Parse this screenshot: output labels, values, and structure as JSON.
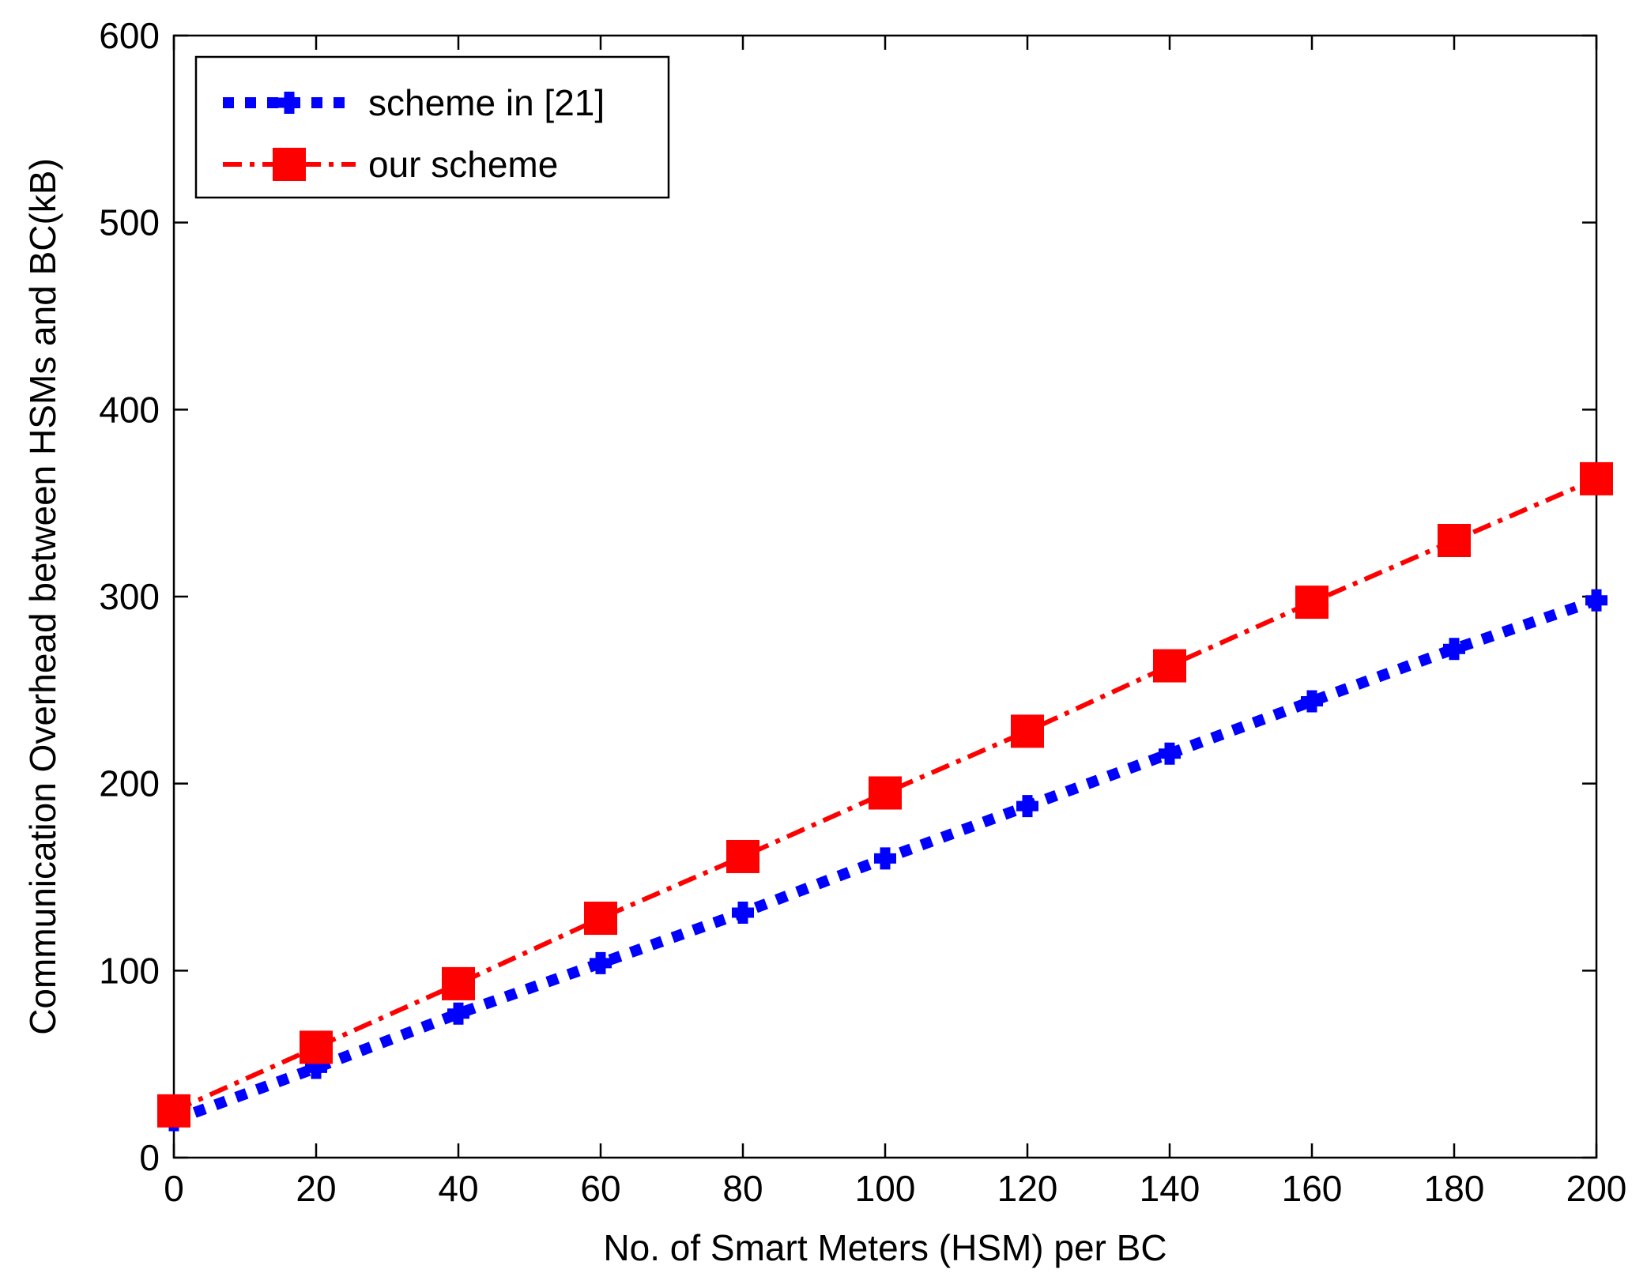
{
  "chart_data": {
    "type": "line",
    "title": "",
    "xlabel": "No. of Smart Meters (HSM) per BC",
    "ylabel": "Communication Overhead between HSMs and BC(kB)",
    "xlim": [
      0,
      200
    ],
    "ylim": [
      0,
      600
    ],
    "xticks": [
      0,
      20,
      40,
      60,
      80,
      100,
      120,
      140,
      160,
      180,
      200
    ],
    "yticks": [
      0,
      100,
      200,
      300,
      400,
      500,
      600
    ],
    "grid": false,
    "legend_position": "top-left",
    "x": [
      0,
      20,
      40,
      60,
      80,
      100,
      120,
      140,
      160,
      180,
      200
    ],
    "series": [
      {
        "name": "scheme in [21]",
        "color": "#0000ff",
        "line_style": "dotted",
        "marker": "plus",
        "values": [
          20,
          48,
          77,
          104,
          131,
          160,
          188,
          216,
          244,
          272,
          298
        ]
      },
      {
        "name": "our scheme",
        "color": "#ff0000",
        "line_style": "dash-dot",
        "marker": "square",
        "values": [
          25,
          59,
          93,
          128,
          161,
          195,
          228,
          263,
          297,
          330,
          363
        ]
      }
    ]
  }
}
